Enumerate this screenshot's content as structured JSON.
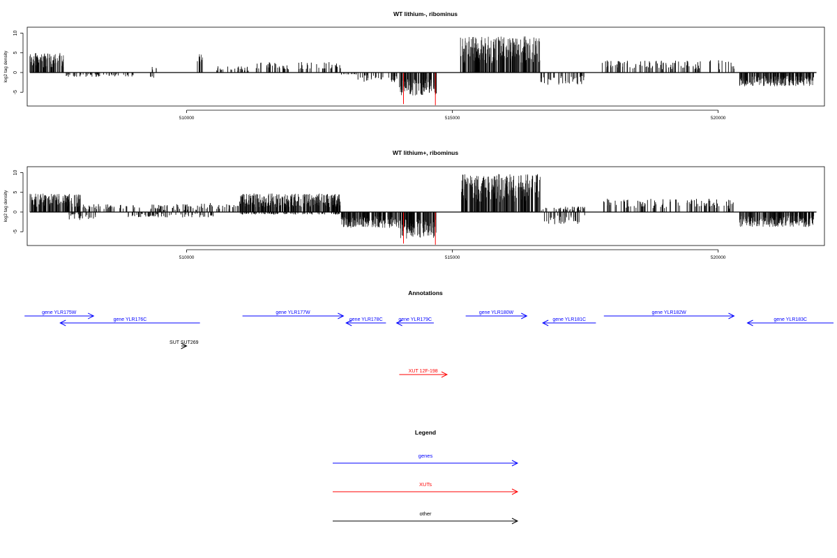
{
  "colors": {
    "positive": "#000000",
    "negative": "#000000",
    "highlight": "#ff0000",
    "gene": "#0000ff",
    "xut": "#ff0000",
    "other": "#000000"
  },
  "chart_data": [
    {
      "type": "bar",
      "title": "WT lithium-, ribominus",
      "ylabel": "log2 tag density",
      "xlim": [
        507000,
        522000
      ],
      "ylim": [
        -8.5,
        11.5
      ],
      "x_ticks": [
        "510000",
        "515000",
        "520000"
      ],
      "y_ticks": [
        "10",
        "5",
        "0",
        "-5"
      ],
      "segments": [
        {
          "strand": "+",
          "start": 507050,
          "end": 507700,
          "mean": 3.7
        },
        {
          "strand": "-",
          "start": 507700,
          "end": 509000,
          "mean": -0.8
        },
        {
          "strand": "-",
          "start": 509300,
          "end": 509400,
          "mean": -1.5
        },
        {
          "strand": "+",
          "start": 509350,
          "end": 509450,
          "mean": 1.2
        },
        {
          "strand": "+",
          "start": 510200,
          "end": 510300,
          "mean": 3.5
        },
        {
          "strand": "+",
          "start": 510500,
          "end": 511200,
          "mean": 1.2
        },
        {
          "strand": "+",
          "start": 511300,
          "end": 512900,
          "mean": 2.0
        },
        {
          "strand": "-",
          "start": 512900,
          "end": 513200,
          "mean": -0.5
        },
        {
          "strand": "-",
          "start": 513200,
          "end": 514000,
          "mean": -1.8
        },
        {
          "strand": "-",
          "start": 514000,
          "end": 514700,
          "mean": -4.3
        },
        {
          "strand": "+",
          "start": 515150,
          "end": 516650,
          "mean": 6.8
        },
        {
          "strand": "-",
          "start": 516650,
          "end": 517500,
          "mean": -2.3
        },
        {
          "strand": "+",
          "start": 517800,
          "end": 520300,
          "mean": 2.3
        },
        {
          "strand": "-",
          "start": 520400,
          "end": 521800,
          "mean": -2.6
        }
      ],
      "red_bars": [
        {
          "x": 514080,
          "y": -8.0
        },
        {
          "x": 514680,
          "y": -8.3
        }
      ]
    },
    {
      "type": "bar",
      "title": "WT lithium+, ribominus",
      "ylabel": "log2 tag density",
      "xlim": [
        507000,
        522000
      ],
      "ylim": [
        -8.5,
        11.5
      ],
      "x_ticks": [
        "510000",
        "515000",
        "520000"
      ],
      "y_ticks": [
        "10",
        "5",
        "0",
        "-5"
      ],
      "segments": [
        {
          "strand": "+",
          "start": 507050,
          "end": 508000,
          "mean": 3.5
        },
        {
          "strand": "-",
          "start": 507700,
          "end": 508300,
          "mean": -1.5
        },
        {
          "strand": "+",
          "start": 508000,
          "end": 510200,
          "mean": 1.5
        },
        {
          "strand": "-",
          "start": 508900,
          "end": 510500,
          "mean": -1.0
        },
        {
          "strand": "+",
          "start": 510200,
          "end": 511000,
          "mean": 2.0
        },
        {
          "strand": "+",
          "start": 511000,
          "end": 512900,
          "mean": 3.5
        },
        {
          "strand": "-",
          "start": 511000,
          "end": 512900,
          "mean": -0.5
        },
        {
          "strand": "-",
          "start": 512900,
          "end": 514000,
          "mean": -3.0
        },
        {
          "strand": "-",
          "start": 514000,
          "end": 514700,
          "mean": -5.0
        },
        {
          "strand": "+",
          "start": 515150,
          "end": 516650,
          "mean": 7.2
        },
        {
          "strand": "+",
          "start": 516650,
          "end": 517500,
          "mean": 1.0
        },
        {
          "strand": "-",
          "start": 516650,
          "end": 517500,
          "mean": -2.3
        },
        {
          "strand": "+",
          "start": 517800,
          "end": 520300,
          "mean": 2.5
        },
        {
          "strand": "-",
          "start": 520400,
          "end": 521800,
          "mean": -2.8
        }
      ],
      "red_bars": [
        {
          "x": 514080,
          "y": -8.0
        },
        {
          "x": 514680,
          "y": -8.3
        }
      ]
    }
  ],
  "annotations": {
    "title": "Annotations",
    "features": [
      {
        "label": "gene YLR175W",
        "kind": "gene",
        "strand": "+",
        "start": 506950,
        "end": 508250,
        "row": 0
      },
      {
        "label": "gene YLR176C",
        "kind": "gene",
        "strand": "-",
        "start": 507620,
        "end": 510250,
        "row": 1
      },
      {
        "label": "gene YLR177W",
        "kind": "gene",
        "strand": "+",
        "start": 511050,
        "end": 512950,
        "row": 0
      },
      {
        "label": "gene YLR178C",
        "kind": "gene",
        "strand": "-",
        "start": 513000,
        "end": 513750,
        "row": 1
      },
      {
        "label": "gene YLR179C",
        "kind": "gene",
        "strand": "-",
        "start": 513950,
        "end": 514650,
        "row": 1
      },
      {
        "label": "gene YLR180W",
        "kind": "gene",
        "strand": "+",
        "start": 515250,
        "end": 516400,
        "row": 0
      },
      {
        "label": "gene YLR181C",
        "kind": "gene",
        "strand": "-",
        "start": 516700,
        "end": 517700,
        "row": 1
      },
      {
        "label": "gene YLR182W",
        "kind": "gene",
        "strand": "+",
        "start": 517850,
        "end": 520300,
        "row": 0
      },
      {
        "label": "gene YLR183C",
        "kind": "gene",
        "strand": "-",
        "start": 520550,
        "end": 522250,
        "row": 1
      },
      {
        "label": "SUT SUT269",
        "kind": "other",
        "strand": "+",
        "start": 509900,
        "end": 510000,
        "row": 2
      },
      {
        "label": "XUT 12F-198",
        "kind": "xut",
        "strand": "+",
        "start": 514000,
        "end": 514900,
        "row": 3
      }
    ]
  },
  "legend": {
    "title": "Legend",
    "items": [
      {
        "label": "genes",
        "kind": "gene"
      },
      {
        "label": "XUTs",
        "kind": "xut"
      },
      {
        "label": "other",
        "kind": "other"
      }
    ]
  }
}
